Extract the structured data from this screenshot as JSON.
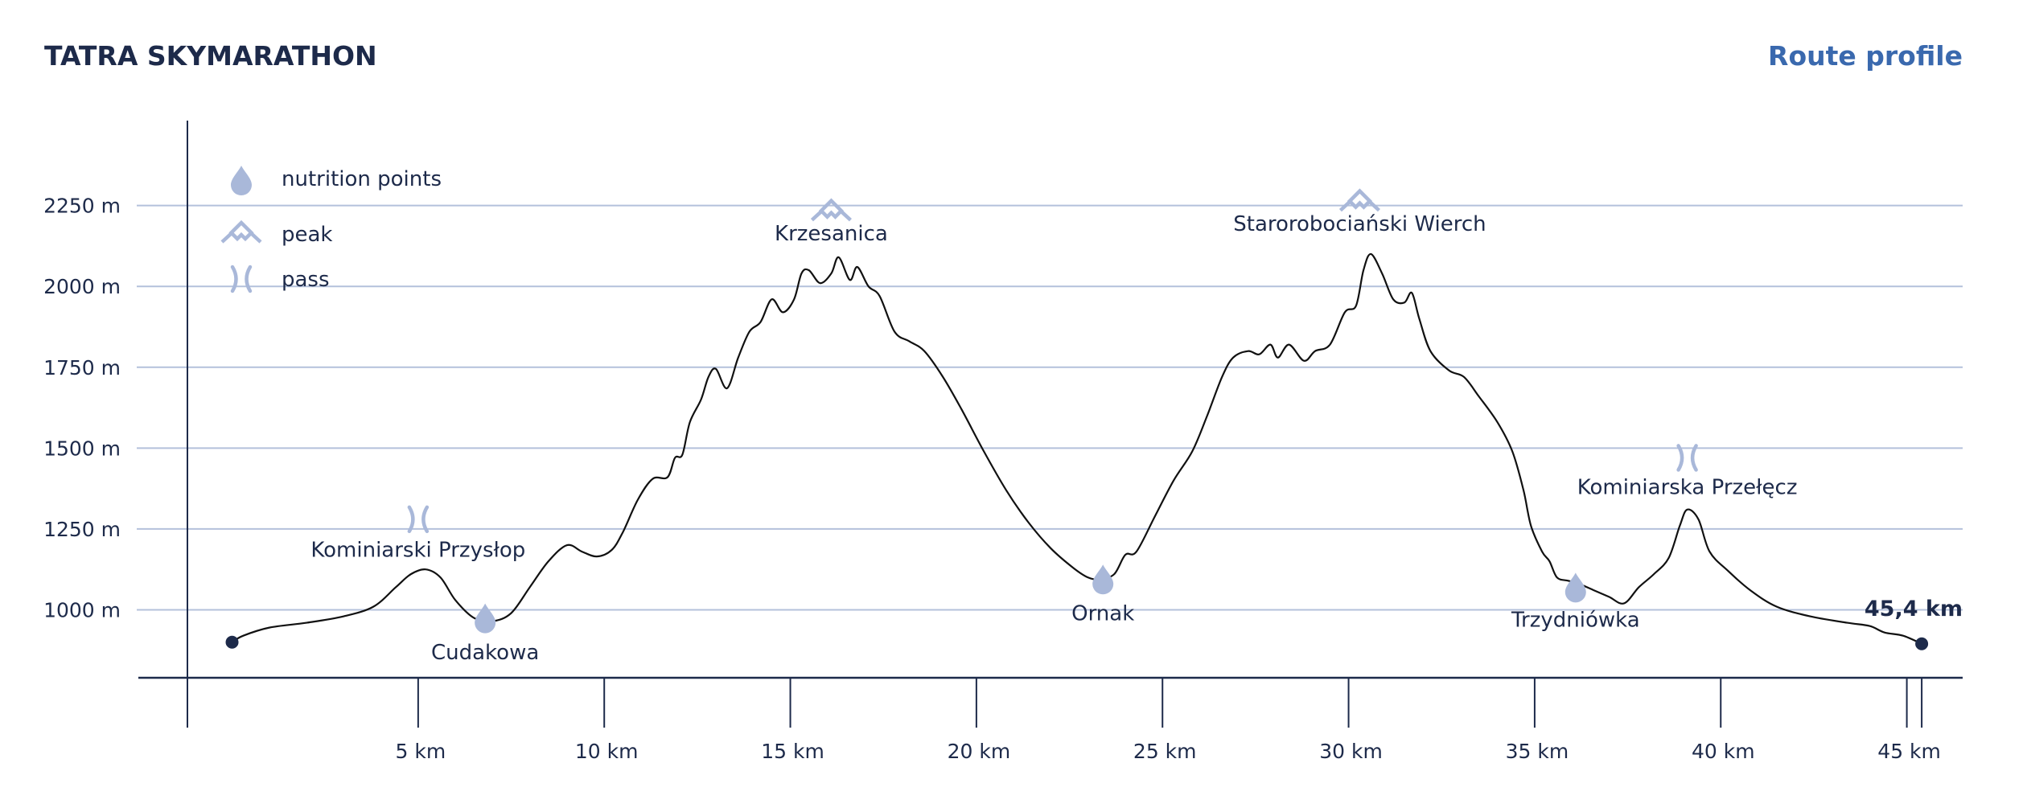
{
  "header": {
    "title": "TATRA SKYMARATHON",
    "subtitle": "Route profile"
  },
  "colors": {
    "text": "#1d2a4a",
    "accent": "#3a69ae",
    "grid": "#b4c1db",
    "marker": "#a9b8d9",
    "profile": "#111111"
  },
  "chart_data": {
    "type": "line",
    "title": "TATRA SKYMARATHON",
    "subtitle": "Route profile",
    "xlabel": "",
    "ylabel": "",
    "xlim": [
      -1.2,
      46.5
    ],
    "ylim": [
      785,
      2525
    ],
    "grid": true,
    "legend_position": "top-left",
    "y_ticks": [
      {
        "value": 1000,
        "label": "1000 m"
      },
      {
        "value": 1250,
        "label": "1250 m"
      },
      {
        "value": 1500,
        "label": "1500 m"
      },
      {
        "value": 1750,
        "label": "1750 m"
      },
      {
        "value": 2000,
        "label": "2000 m"
      },
      {
        "value": 2250,
        "label": "2250 m"
      }
    ],
    "x_ticks": [
      {
        "value": 5,
        "label": "5 km"
      },
      {
        "value": 10,
        "label": "10 km"
      },
      {
        "value": 15,
        "label": "15 km"
      },
      {
        "value": 20,
        "label": "20 km"
      },
      {
        "value": 25,
        "label": "25 km"
      },
      {
        "value": 30,
        "label": "30 km"
      },
      {
        "value": 35,
        "label": "35 km"
      },
      {
        "value": 40,
        "label": "40 km"
      },
      {
        "value": 45,
        "label": "45 km"
      }
    ],
    "end_label": "45,4 km",
    "legend": [
      {
        "icon": "drop-icon",
        "label": "nutrition points"
      },
      {
        "icon": "peak-icon",
        "label": "peak"
      },
      {
        "icon": "pass-icon",
        "label": "pass"
      }
    ],
    "series": [
      {
        "points": [
          [
            0.0,
            900
          ],
          [
            0.3,
            920
          ],
          [
            1.0,
            945
          ],
          [
            2.0,
            960
          ],
          [
            3.0,
            980
          ],
          [
            3.8,
            1010
          ],
          [
            4.4,
            1070
          ],
          [
            4.8,
            1110
          ],
          [
            5.2,
            1125
          ],
          [
            5.6,
            1100
          ],
          [
            6.0,
            1030
          ],
          [
            6.5,
            975
          ],
          [
            7.0,
            965
          ],
          [
            7.5,
            990
          ],
          [
            8.0,
            1070
          ],
          [
            8.5,
            1150
          ],
          [
            9.0,
            1200
          ],
          [
            9.4,
            1180
          ],
          [
            9.8,
            1165
          ],
          [
            10.2,
            1185
          ],
          [
            10.5,
            1240
          ],
          [
            10.9,
            1340
          ],
          [
            11.3,
            1405
          ],
          [
            11.7,
            1410
          ],
          [
            11.9,
            1470
          ],
          [
            12.1,
            1480
          ],
          [
            12.3,
            1580
          ],
          [
            12.6,
            1650
          ],
          [
            12.8,
            1720
          ],
          [
            13.0,
            1745
          ],
          [
            13.3,
            1685
          ],
          [
            13.6,
            1780
          ],
          [
            13.9,
            1860
          ],
          [
            14.2,
            1890
          ],
          [
            14.5,
            1960
          ],
          [
            14.8,
            1920
          ],
          [
            15.1,
            1960
          ],
          [
            15.3,
            2040
          ],
          [
            15.5,
            2050
          ],
          [
            15.8,
            2010
          ],
          [
            16.1,
            2040
          ],
          [
            16.3,
            2090
          ],
          [
            16.6,
            2020
          ],
          [
            16.8,
            2060
          ],
          [
            17.1,
            2000
          ],
          [
            17.4,
            1970
          ],
          [
            17.8,
            1860
          ],
          [
            18.2,
            1830
          ],
          [
            18.6,
            1800
          ],
          [
            19.1,
            1720
          ],
          [
            19.6,
            1620
          ],
          [
            20.2,
            1490
          ],
          [
            20.8,
            1370
          ],
          [
            21.4,
            1270
          ],
          [
            22.0,
            1190
          ],
          [
            22.6,
            1130
          ],
          [
            23.0,
            1100
          ],
          [
            23.3,
            1095
          ],
          [
            23.7,
            1110
          ],
          [
            24.0,
            1170
          ],
          [
            24.3,
            1180
          ],
          [
            24.8,
            1290
          ],
          [
            25.3,
            1400
          ],
          [
            25.8,
            1490
          ],
          [
            26.2,
            1600
          ],
          [
            26.6,
            1720
          ],
          [
            26.9,
            1780
          ],
          [
            27.3,
            1800
          ],
          [
            27.6,
            1790
          ],
          [
            27.9,
            1820
          ],
          [
            28.1,
            1780
          ],
          [
            28.4,
            1820
          ],
          [
            28.8,
            1770
          ],
          [
            29.1,
            1800
          ],
          [
            29.5,
            1820
          ],
          [
            29.9,
            1920
          ],
          [
            30.2,
            1940
          ],
          [
            30.4,
            2050
          ],
          [
            30.6,
            2100
          ],
          [
            30.9,
            2040
          ],
          [
            31.2,
            1960
          ],
          [
            31.5,
            1950
          ],
          [
            31.7,
            1980
          ],
          [
            31.9,
            1900
          ],
          [
            32.2,
            1800
          ],
          [
            32.7,
            1740
          ],
          [
            33.1,
            1720
          ],
          [
            33.5,
            1660
          ],
          [
            34.0,
            1580
          ],
          [
            34.4,
            1490
          ],
          [
            34.7,
            1370
          ],
          [
            34.9,
            1260
          ],
          [
            35.2,
            1180
          ],
          [
            35.4,
            1150
          ],
          [
            35.6,
            1100
          ],
          [
            35.9,
            1090
          ],
          [
            36.2,
            1080
          ],
          [
            36.6,
            1060
          ],
          [
            37.0,
            1040
          ],
          [
            37.4,
            1020
          ],
          [
            37.8,
            1070
          ],
          [
            38.2,
            1110
          ],
          [
            38.6,
            1160
          ],
          [
            38.9,
            1260
          ],
          [
            39.1,
            1310
          ],
          [
            39.4,
            1280
          ],
          [
            39.7,
            1180
          ],
          [
            40.2,
            1120
          ],
          [
            40.8,
            1060
          ],
          [
            41.5,
            1010
          ],
          [
            42.4,
            980
          ],
          [
            43.4,
            960
          ],
          [
            44.0,
            950
          ],
          [
            44.4,
            930
          ],
          [
            44.9,
            920
          ],
          [
            45.4,
            895
          ]
        ]
      }
    ],
    "end_points": [
      [
        0.0,
        900
      ],
      [
        45.4,
        895
      ]
    ],
    "landmarks": [
      {
        "name": "Kominiarski Przysłop",
        "type": "pass",
        "x": 5.0,
        "y": 1280,
        "label_y": 1187,
        "label_anchor": "middle"
      },
      {
        "name": "Cudakowa",
        "type": "nutrition",
        "x": 6.8,
        "y": 975,
        "label_y": 870,
        "label_anchor": "middle"
      },
      {
        "name": "Krzesanica",
        "type": "peak",
        "x": 16.1,
        "y": 2235,
        "label_y": 2165,
        "label_anchor": "middle"
      },
      {
        "name": "Ornak",
        "type": "nutrition",
        "x": 23.4,
        "y": 1095,
        "label_y": 990,
        "label_anchor": "middle"
      },
      {
        "name": "Starorobociański Wierch",
        "type": "peak",
        "x": 30.3,
        "y": 2265,
        "label_y": 2195,
        "label_anchor": "middle"
      },
      {
        "name": "Trzydniówka",
        "type": "nutrition",
        "x": 36.1,
        "y": 1070,
        "label_y": 970,
        "label_anchor": "middle"
      },
      {
        "name": "Kominiarska Przełęcz",
        "type": "pass",
        "x": 39.1,
        "y": 1470,
        "label_y": 1380,
        "label_anchor": "middle"
      }
    ]
  }
}
